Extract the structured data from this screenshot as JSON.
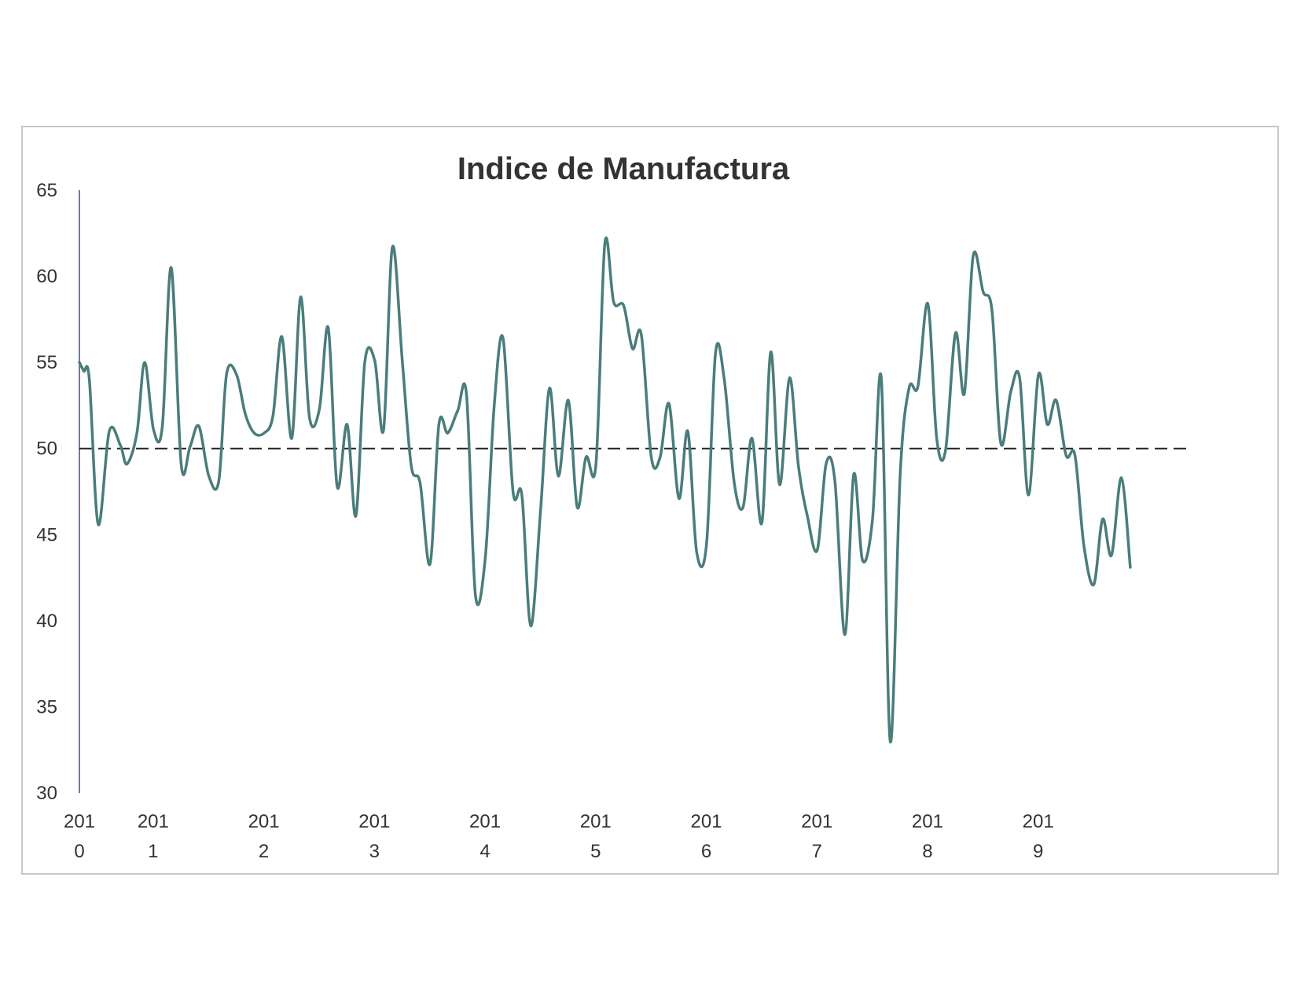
{
  "chart_data": {
    "type": "line",
    "title": "Indice de Manufactura",
    "xlabel": "",
    "ylabel": "",
    "ylim": [
      30,
      65
    ],
    "y_ticks": [
      65,
      60,
      55,
      50,
      45,
      40,
      35,
      30
    ],
    "x_range": [
      2010,
      2019.92
    ],
    "x_tick_labels": [
      {
        "value": 2010.0,
        "line1": "201",
        "line2": "0"
      },
      {
        "value": 2010.667,
        "line1": "201",
        "line2": "1"
      },
      {
        "value": 2011.667,
        "line1": "201",
        "line2": "2"
      },
      {
        "value": 2012.667,
        "line1": "201",
        "line2": "3"
      },
      {
        "value": 2013.667,
        "line1": "201",
        "line2": "4"
      },
      {
        "value": 2014.667,
        "line1": "201",
        "line2": "5"
      },
      {
        "value": 2015.667,
        "line1": "201",
        "line2": "6"
      },
      {
        "value": 2016.667,
        "line1": "201",
        "line2": "7"
      },
      {
        "value": 2017.667,
        "line1": "201",
        "line2": "8"
      },
      {
        "value": 2018.667,
        "line1": "201",
        "line2": "9"
      }
    ],
    "reference_line": {
      "y": 50,
      "style": "dashed"
    },
    "grid": false,
    "legend": "none",
    "line_color": "#4a7d7b",
    "series": [
      {
        "values": [
          [
            2010.0,
            55.0
          ],
          [
            2010.04,
            54.5
          ],
          [
            2010.09,
            54.0
          ],
          [
            2010.17,
            45.6
          ],
          [
            2010.27,
            51.0
          ],
          [
            2010.37,
            50.2
          ],
          [
            2010.43,
            49.1
          ],
          [
            2010.52,
            50.9
          ],
          [
            2010.59,
            55.0
          ],
          [
            2010.67,
            51.1
          ],
          [
            2010.75,
            51.3
          ],
          [
            2010.83,
            60.5
          ],
          [
            2010.92,
            49.1
          ],
          [
            2011.0,
            50.1
          ],
          [
            2011.08,
            51.3
          ],
          [
            2011.17,
            48.4
          ],
          [
            2011.26,
            48.1
          ],
          [
            2011.33,
            54.3
          ],
          [
            2011.42,
            54.3
          ],
          [
            2011.5,
            52.0
          ],
          [
            2011.58,
            50.9
          ],
          [
            2011.67,
            50.9
          ],
          [
            2011.75,
            51.9
          ],
          [
            2011.83,
            56.5
          ],
          [
            2011.92,
            50.6
          ],
          [
            2012.0,
            58.8
          ],
          [
            2012.08,
            51.8
          ],
          [
            2012.17,
            52.3
          ],
          [
            2012.25,
            57.0
          ],
          [
            2012.33,
            47.8
          ],
          [
            2012.42,
            51.4
          ],
          [
            2012.5,
            46.1
          ],
          [
            2012.58,
            55.0
          ],
          [
            2012.67,
            55.1
          ],
          [
            2012.75,
            51.1
          ],
          [
            2012.83,
            61.7
          ],
          [
            2012.92,
            55.0
          ],
          [
            2013.0,
            49.0
          ],
          [
            2013.08,
            48.0
          ],
          [
            2013.17,
            43.3
          ],
          [
            2013.25,
            51.4
          ],
          [
            2013.33,
            50.9
          ],
          [
            2013.42,
            52.2
          ],
          [
            2013.5,
            53.1
          ],
          [
            2013.58,
            41.5
          ],
          [
            2013.67,
            43.7
          ],
          [
            2013.75,
            52.5
          ],
          [
            2013.83,
            56.4
          ],
          [
            2013.92,
            47.5
          ],
          [
            2014.0,
            47.3
          ],
          [
            2014.08,
            39.7
          ],
          [
            2014.17,
            46.5
          ],
          [
            2014.25,
            53.5
          ],
          [
            2014.33,
            48.4
          ],
          [
            2014.42,
            52.8
          ],
          [
            2014.5,
            46.6
          ],
          [
            2014.58,
            49.5
          ],
          [
            2014.67,
            49.1
          ],
          [
            2014.75,
            61.9
          ],
          [
            2014.83,
            58.5
          ],
          [
            2014.92,
            58.3
          ],
          [
            2015.0,
            55.8
          ],
          [
            2015.08,
            56.6
          ],
          [
            2015.17,
            49.5
          ],
          [
            2015.25,
            49.5
          ],
          [
            2015.33,
            52.6
          ],
          [
            2015.42,
            47.1
          ],
          [
            2015.5,
            51.0
          ],
          [
            2015.58,
            44.0
          ],
          [
            2015.67,
            44.5
          ],
          [
            2015.75,
            55.5
          ],
          [
            2015.83,
            54.0
          ],
          [
            2015.92,
            48.0
          ],
          [
            2016.0,
            46.6
          ],
          [
            2016.08,
            50.6
          ],
          [
            2016.17,
            45.7
          ],
          [
            2016.25,
            55.6
          ],
          [
            2016.33,
            47.9
          ],
          [
            2016.42,
            54.1
          ],
          [
            2016.5,
            49.0
          ],
          [
            2016.58,
            46.1
          ],
          [
            2016.67,
            44.1
          ],
          [
            2016.75,
            49.1
          ],
          [
            2016.83,
            48.1
          ],
          [
            2016.92,
            39.2
          ],
          [
            2017.0,
            48.5
          ],
          [
            2017.08,
            43.5
          ],
          [
            2017.17,
            45.9
          ],
          [
            2017.25,
            54.0
          ],
          [
            2017.33,
            33.0
          ],
          [
            2017.42,
            48.5
          ],
          [
            2017.5,
            53.5
          ],
          [
            2017.58,
            53.6
          ],
          [
            2017.67,
            58.4
          ],
          [
            2017.75,
            50.6
          ],
          [
            2017.83,
            49.9
          ],
          [
            2017.92,
            56.7
          ],
          [
            2018.0,
            53.2
          ],
          [
            2018.08,
            61.2
          ],
          [
            2018.17,
            59.1
          ],
          [
            2018.25,
            58.0
          ],
          [
            2018.33,
            50.3
          ],
          [
            2018.42,
            53.3
          ],
          [
            2018.5,
            54.1
          ],
          [
            2018.58,
            47.3
          ],
          [
            2018.67,
            54.3
          ],
          [
            2018.75,
            51.4
          ],
          [
            2018.83,
            52.8
          ],
          [
            2018.92,
            49.6
          ],
          [
            2019.0,
            49.6
          ],
          [
            2019.08,
            44.4
          ],
          [
            2019.17,
            42.1
          ],
          [
            2019.25,
            45.9
          ],
          [
            2019.33,
            43.8
          ],
          [
            2019.42,
            48.3
          ],
          [
            2019.5,
            43.1
          ]
        ]
      }
    ]
  }
}
